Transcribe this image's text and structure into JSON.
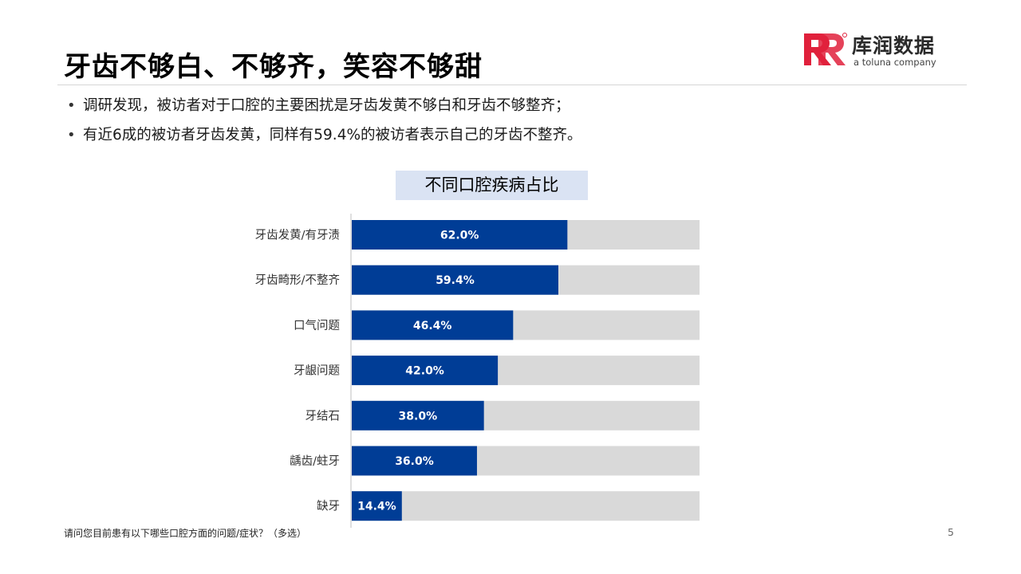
{
  "page": {
    "title": "牙齿不够白、不够齐，笑容不够甜",
    "page_number": "5"
  },
  "logo": {
    "mark_letters": "R",
    "name_cn": "库润数据",
    "tagline": "a toluna company",
    "brand_color": "#e0213c"
  },
  "bullets": [
    "调研发现，被访者对于口腔的主要困扰是牙齿发黄不够白和牙齿不够整齐；",
    "有近6成的被访者牙齿发黄，同样有59.4%的被访者表示自己的牙齿不整齐。"
  ],
  "bullet_marker": "•",
  "footnote": "请问您目前患有以下哪些口腔方面的问题/症状？（多选）",
  "colors": {
    "bar": "#003d96",
    "track": "#d9d9d9",
    "title_bg": "#dae3f3",
    "axis": "#bfbfbf"
  },
  "chart_data": {
    "type": "bar",
    "orientation": "horizontal",
    "title": "不同口腔疾病占比",
    "categories": [
      "牙齿发黄/有牙渍",
      "牙齿畸形/不整齐",
      "口气问题",
      "牙龈问题",
      "牙结石",
      "龋齿/蛀牙",
      "缺牙"
    ],
    "values": [
      62.0,
      59.4,
      46.4,
      42.0,
      38.0,
      36.0,
      14.4
    ],
    "value_labels": [
      "62.0%",
      "59.4%",
      "46.4%",
      "42.0%",
      "38.0%",
      "36.0%",
      "14.4%"
    ],
    "unit": "%",
    "xlim": [
      0,
      100
    ],
    "grid": false,
    "legend": "none"
  }
}
